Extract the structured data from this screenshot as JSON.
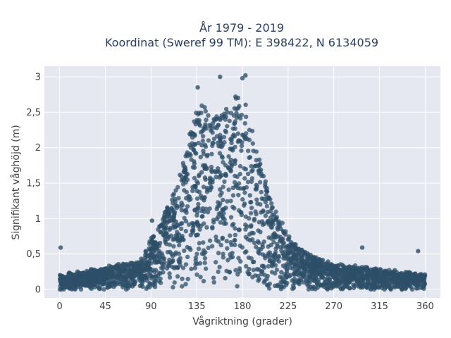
{
  "chart_data": {
    "type": "scatter",
    "title_lines": [
      "År 1979 - 2019",
      "Koordinat (Sweref 99 TM): E 398422, N 6134059"
    ],
    "xlabel": "Vågriktning (grader)",
    "ylabel": "Signifikant våghöjd (m)",
    "xlim": [
      -15,
      375
    ],
    "ylim": [
      -0.12,
      3.15
    ],
    "x_ticks": [
      0,
      45,
      90,
      135,
      180,
      225,
      270,
      315,
      360
    ],
    "x_tick_labels": [
      "0",
      "45",
      "90",
      "135",
      "180",
      "225",
      "270",
      "315",
      "360"
    ],
    "y_ticks": [
      0,
      0.5,
      1,
      1.5,
      2,
      2.5,
      3
    ],
    "y_tick_labels": [
      "0",
      "0,5",
      "1",
      "1,5",
      "2",
      "2,5",
      "3"
    ],
    "grid": true,
    "marker_color": "#2e4f68",
    "background_color": "#e5e8f0",
    "envelope": {
      "direction_deg": [
        0,
        45,
        80,
        90,
        100,
        110,
        120,
        130,
        140,
        150,
        160,
        170,
        180,
        190,
        200,
        210,
        220,
        230,
        250,
        270,
        300,
        330,
        360
      ],
      "max_height_m": [
        0.2,
        0.3,
        0.4,
        0.7,
        0.95,
        1.3,
        1.75,
        2.35,
        2.7,
        2.45,
        2.5,
        2.65,
        2.85,
        2.2,
        1.65,
        1.2,
        0.9,
        0.65,
        0.45,
        0.35,
        0.3,
        0.25,
        0.2
      ]
    },
    "notable_points": [
      {
        "x": 1,
        "y": 0.59
      },
      {
        "x": 158,
        "y": 3.0
      },
      {
        "x": 183,
        "y": 3.02
      },
      {
        "x": 180,
        "y": 2.98
      },
      {
        "x": 136,
        "y": 2.85
      },
      {
        "x": 91,
        "y": 0.97
      },
      {
        "x": 298,
        "y": 0.59
      },
      {
        "x": 353,
        "y": 0.54
      }
    ]
  }
}
